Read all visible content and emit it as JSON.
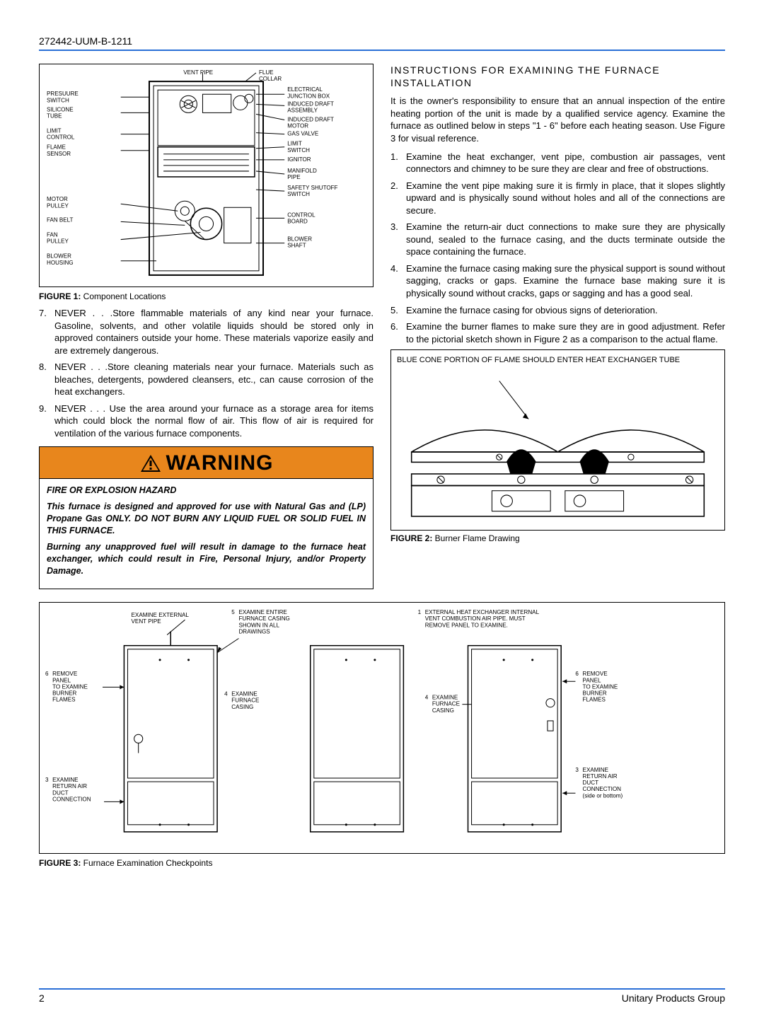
{
  "doc_id": "272442-UUM-B-1211",
  "figure1": {
    "caption_label": "FIGURE 1:",
    "caption_text": " Component Locations",
    "left_labels": [
      "PRESUURE SWITCH",
      "SILICONE TUBE",
      "LIMIT CONTROL",
      "FLAME SENSOR",
      "MOTOR PULLEY",
      "FAN BELT",
      "FAN PULLEY",
      "BLOWER HOUSING"
    ],
    "top_labels": [
      "VENT PIPE",
      "FLUE COLLAR"
    ],
    "right_labels": [
      "ELECTRICAL JUNCTION BOX",
      "INDUCED DRAFT ASSEMBLY",
      "INDUCED DRAFT MOTOR",
      "GAS VALVE",
      "LIMIT SWITCH",
      "IGNITOR",
      "MANIFOLD PIPE",
      "SAFETY SHUTOFF SWITCH",
      "CONTROL BOARD",
      "BLOWER SHAFT"
    ]
  },
  "left_list": [
    {
      "num": "7.",
      "text": "NEVER . . .Store flammable materials of any kind near your furnace. Gasoline, solvents, and other volatile liquids should be stored only in approved containers outside your home. These materials vaporize easily and are extremely dangerous."
    },
    {
      "num": "8.",
      "text": "NEVER . . .Store cleaning materials near your furnace. Materials such as bleaches, detergents, powdered cleansers, etc., can cause corrosion of the heat exchangers."
    },
    {
      "num": "9.",
      "text": "NEVER . . . Use the area around your furnace as a storage area for items which could block the normal flow of air. This flow of air is required for ventilation of the various furnace components."
    }
  ],
  "warning": {
    "title": "WARNING",
    "subtitle": "FIRE OR EXPLOSION HAZARD",
    "p1": "This furnace is designed and approved for use with Natural Gas and (LP) Propane Gas ONLY. DO NOT BURN ANY LIQUID FUEL OR SOLID FUEL IN THIS FURNACE.",
    "p2": "Burning any unapproved fuel will result in damage to the furnace heat exchanger, which could result in Fire, Personal Injury, and/or Property Damage."
  },
  "right_section_title": "INSTRUCTIONS FOR EXAMINING THE FURNACE INSTALLATION",
  "right_intro": "It is the owner's responsibility to ensure that an annual inspection of the entire heating portion of the unit is made by a qualified service agency. Examine the furnace as outlined below in steps \"1 - 6\" before each heating season. Use Figure 3 for visual reference.",
  "right_list": [
    {
      "num": "1.",
      "text": "Examine the heat exchanger, vent pipe, combustion air passages, vent connectors and chimney to be sure they are clear and free of obstructions."
    },
    {
      "num": "2.",
      "text": "Examine the vent pipe making sure it is firmly in place, that it slopes slightly upward and is physically sound without holes and all of the connections are secure."
    },
    {
      "num": "3.",
      "text": "Examine the return-air duct connections to make sure they are physically sound, sealed to the furnace casing, and the ducts terminate outside the space containing the furnace."
    },
    {
      "num": "4.",
      "text": "Examine the furnace casing making sure the physical support is sound without sagging, cracks or gaps. Examine the furnace base making sure it is physically sound without cracks, gaps or sagging and has a good seal."
    },
    {
      "num": "5.",
      "text": "Examine the furnace casing for obvious signs of deterioration."
    },
    {
      "num": "6.",
      "text": "Examine the burner flames to make sure they are in good adjustment. Refer to the pictorial sketch shown in Figure 2 as a comparison to the actual flame."
    }
  ],
  "figure2": {
    "note": "BLUE CONE PORTION OF FLAME SHOULD ENTER HEAT EXCHANGER TUBE",
    "caption_label": "FIGURE 2:",
    "caption_text": " Burner Flame Drawing"
  },
  "figure3": {
    "caption_label": "FIGURE 3:",
    "caption_text": " Furnace Examination Checkpoints",
    "labels": {
      "l1": "EXAMINE EXTERNAL VENT PIPE",
      "l5a": "5",
      "l5": "EXAMINE ENTIRE FURNACE CASING SHOWN IN ALL DRAWINGS",
      "l6num": "6",
      "l6": "REMOVE PANEL TO EXAMINE BURNER FLAMES",
      "l4num": "4",
      "l4": "EXAMINE FURNACE CASING",
      "l3num": "3",
      "l3": "EXAMINE RETURN AIR DUCT CONNECTION",
      "r1num": "1",
      "r1": "EXTERNAL HEAT EXCHANGER INTERNAL VENT COMBUSTION AIR PIPE. MUST REMOVE PANEL TO EXAMINE.",
      "r6num": "6",
      "r6": "REMOVE PANEL TO EXAMINE BURNER FLAMES",
      "r4num": "4",
      "r4": "EXAMINE FURNACE CASING",
      "r3num": "3",
      "r3": "EXAMINE RETURN AIR DUCT CONNECTION",
      "r3b": "(side or bottom)"
    }
  },
  "footer": {
    "page": "2",
    "group": "Unitary Products Group"
  },
  "colors": {
    "rule": "#2a6fd6",
    "warning_bg": "#e8861c"
  }
}
